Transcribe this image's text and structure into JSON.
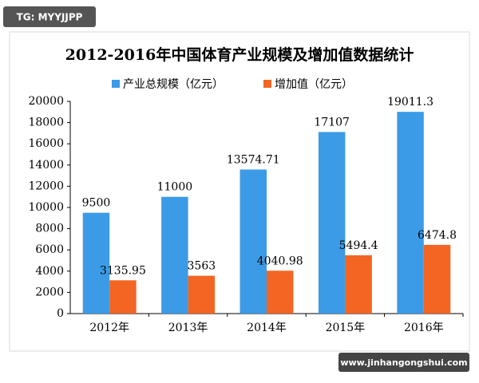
{
  "chart_data": {
    "type": "bar",
    "title": "2012-2016年中国体育产业规模及增加值数据统计",
    "categories": [
      "2012年",
      "2013年",
      "2014年",
      "2015年",
      "2016年"
    ],
    "series": [
      {
        "name": "产业总规模（亿元）",
        "color": "#3b9be6",
        "values": [
          9500,
          11000,
          13574.71,
          17107,
          19011.3
        ]
      },
      {
        "name": "增加值（亿元）",
        "color": "#f26522",
        "values": [
          3135.95,
          3563,
          4040.98,
          5494.4,
          6474.8
        ]
      }
    ],
    "ylim": [
      0,
      20000
    ],
    "yticks": [
      0,
      2000,
      4000,
      6000,
      8000,
      10000,
      12000,
      14000,
      16000,
      18000,
      20000
    ],
    "grid": false,
    "legend": "top",
    "annotations": [
      "TG: MYYJJPP",
      "www.jinhangongshui.com"
    ]
  }
}
